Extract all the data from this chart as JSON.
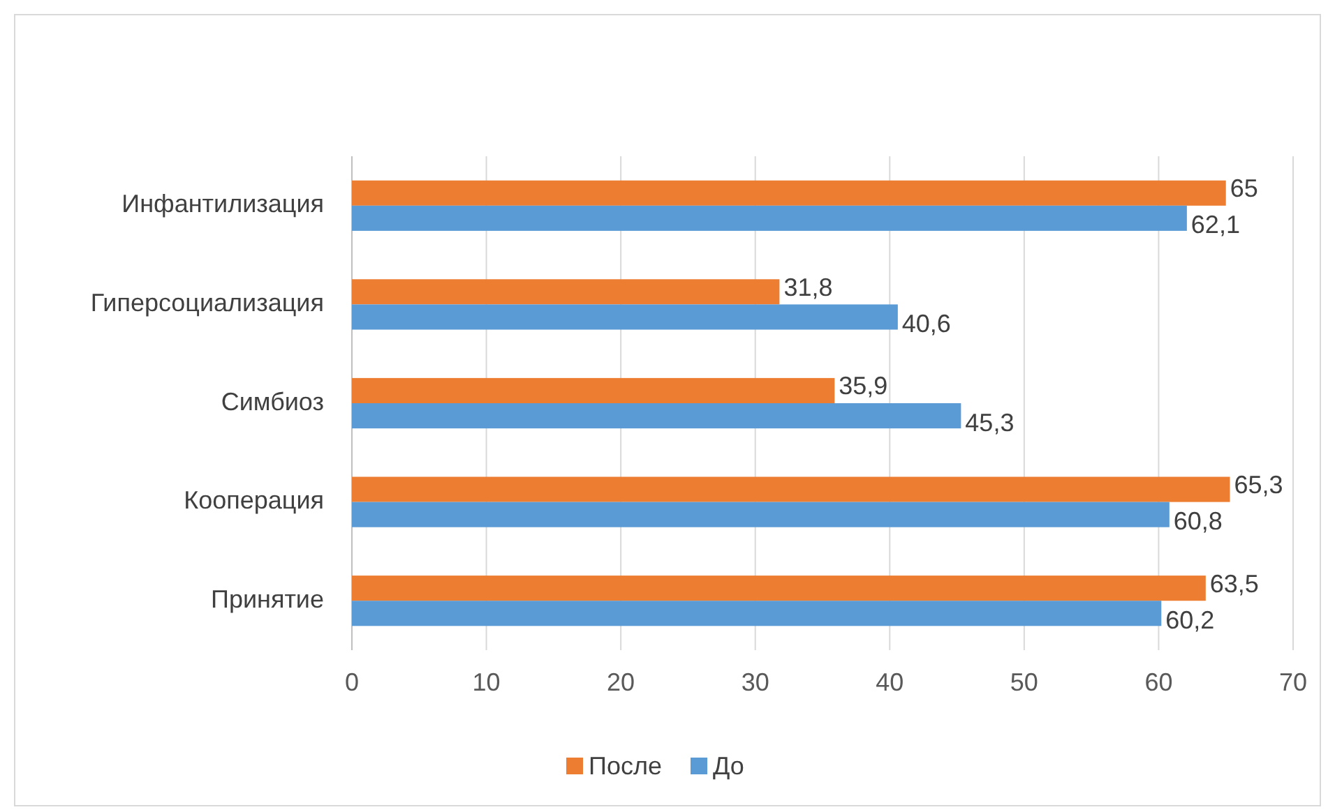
{
  "chart_data": {
    "type": "bar",
    "orientation": "horizontal",
    "categories": [
      "Инфантилизация",
      "Гиперсоциализация",
      "Симбиоз",
      "Кооперация",
      "Принятие"
    ],
    "series": [
      {
        "name": "После",
        "color": "#ed7d31",
        "values": [
          65,
          31.8,
          35.9,
          65.3,
          63.5
        ],
        "value_labels": [
          "65",
          "31,8",
          "35,9",
          "65,3",
          "63,5"
        ]
      },
      {
        "name": "До",
        "color": "#5b9bd5",
        "values": [
          62.1,
          40.6,
          45.3,
          60.8,
          60.2
        ],
        "value_labels": [
          "62,1",
          "40,6",
          "45,3",
          "60,8",
          "60,2"
        ]
      }
    ],
    "xlim": [
      0,
      70
    ],
    "xticks": [
      0,
      10,
      20,
      30,
      40,
      50,
      60,
      70
    ],
    "grid": "x",
    "legend": "bottom"
  }
}
